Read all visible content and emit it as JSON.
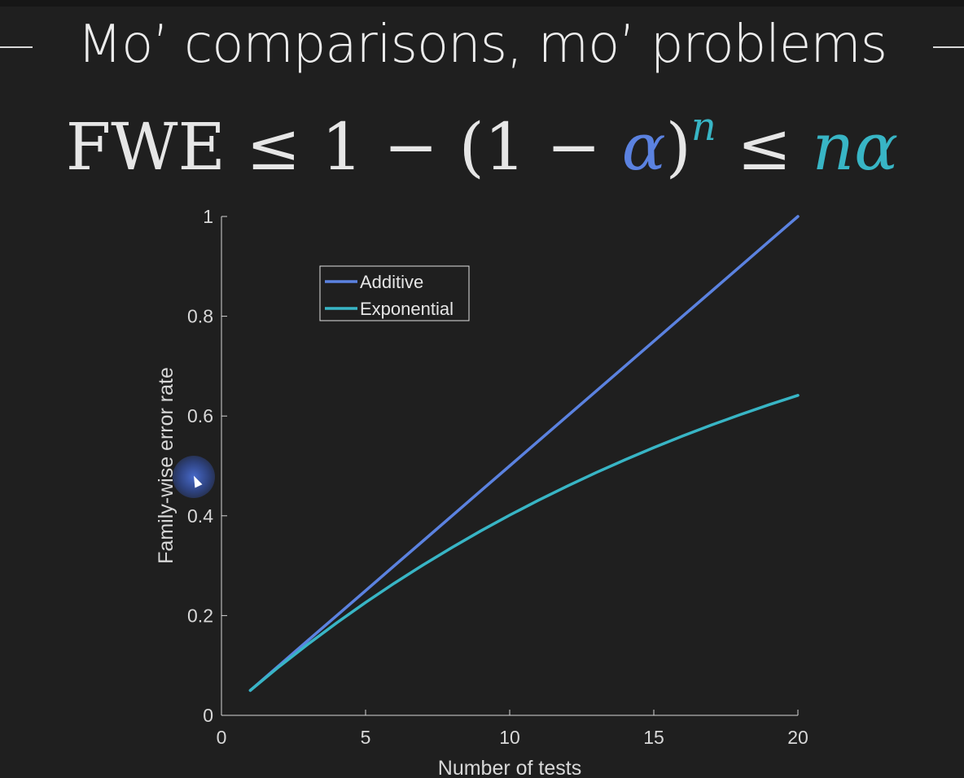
{
  "slide": {
    "title": "Mo’ comparisons, mo’ problems",
    "formula": {
      "lhs": "FWE ≤ 1 − (1 − ",
      "alpha": "α",
      "paren": ")",
      "exponent": "n",
      "le": " ≤ ",
      "rhs": "nα"
    }
  },
  "chart_data": {
    "type": "line",
    "xlabel": "Number of tests",
    "ylabel": "Family-wise error rate",
    "xlim": [
      0,
      20
    ],
    "ylim": [
      0,
      1
    ],
    "xticks": [
      0,
      5,
      10,
      15,
      20
    ],
    "yticks": [
      0,
      0.2,
      0.4,
      0.6,
      0.8,
      1
    ],
    "legend_position": "top-left",
    "grid": false,
    "series": [
      {
        "name": "Additive",
        "color": "#5b82e0",
        "x": [
          1,
          2,
          3,
          4,
          5,
          6,
          7,
          8,
          9,
          10,
          11,
          12,
          13,
          14,
          15,
          16,
          17,
          18,
          19,
          20
        ],
        "y": [
          0.05,
          0.1,
          0.15,
          0.2,
          0.25,
          0.3,
          0.35,
          0.4,
          0.45,
          0.5,
          0.55,
          0.6,
          0.65,
          0.7,
          0.75,
          0.8,
          0.85,
          0.9,
          0.95,
          1.0
        ]
      },
      {
        "name": "Exponential",
        "color": "#38b5c5",
        "x": [
          1,
          2,
          3,
          4,
          5,
          6,
          7,
          8,
          9,
          10,
          11,
          12,
          13,
          14,
          15,
          16,
          17,
          18,
          19,
          20
        ],
        "y": [
          0.05,
          0.0975,
          0.1426,
          0.1855,
          0.2262,
          0.2649,
          0.3017,
          0.3366,
          0.3698,
          0.4013,
          0.4312,
          0.4596,
          0.4867,
          0.5123,
          0.5367,
          0.5599,
          0.5819,
          0.6028,
          0.6226,
          0.6415
        ]
      }
    ]
  }
}
